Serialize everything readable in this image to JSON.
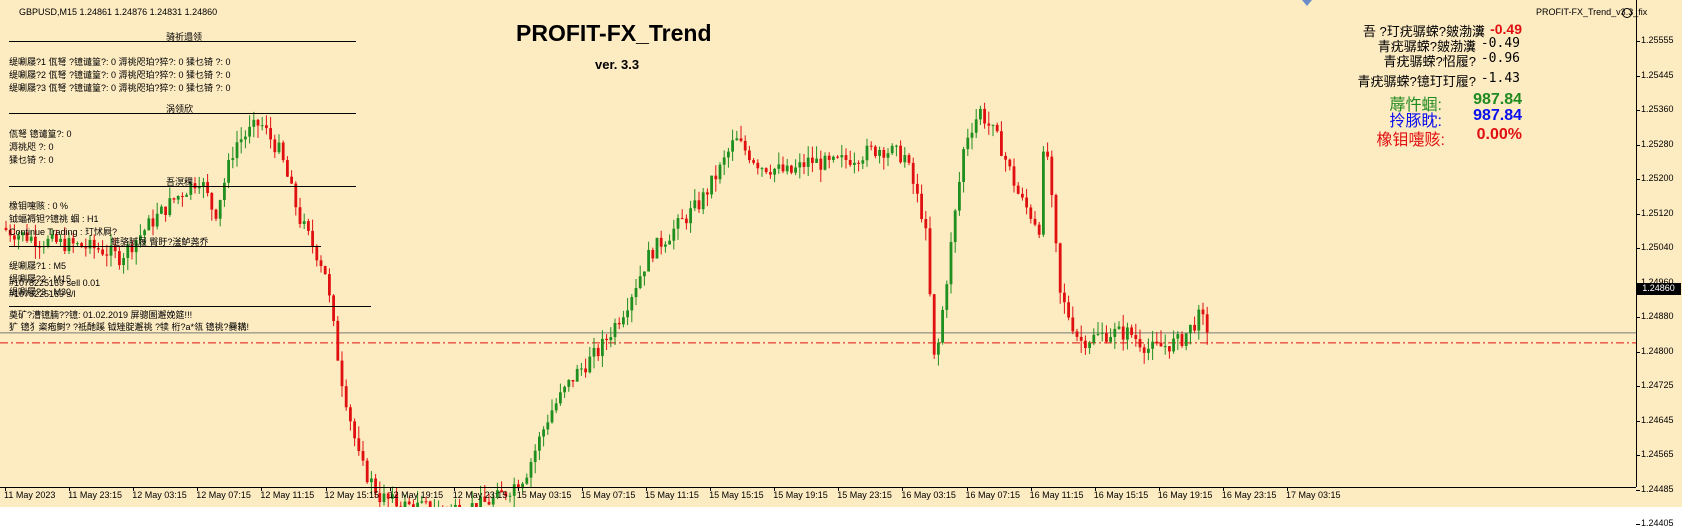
{
  "window": {
    "symbol_header": "GBPUSD,M15  1.24861 1.24876 1.24831 1.24860",
    "expert_label": "PROFIT-FX_Trend_v3.3_fix",
    "smiley_icon": "smiley-icon"
  },
  "title": {
    "main": "PROFIT-FX_Trend",
    "version": "ver. 3.3"
  },
  "account": {
    "r1_label": "吾   ?玎疣骣蝾?皴渤瀵",
    "r1_value": "-0.49",
    "r2_label": "青疣骣蝾?皴渤瀵",
    "r2_value": "-0.49",
    "r3_label": "青疣骣蝾?怊履?",
    "r3_value": "-0.96",
    "r4_label": "青疣骣蝾?镱玎玎履?",
    "r4_value": "-1.43",
    "b1_label": "蓐忤蝈:",
    "b1_value": "987.84",
    "b2_label": "拎豚眈:",
    "b2_value": "987.84",
    "b3_label": "橡钼嚏赅:",
    "b3_value": "0.00%"
  },
  "panel": {
    "sec1_title": "骑祈遢领",
    "s1_row1": "缇唰屦?1 佤弩    ?镱谴篁?:  0    溽祧咫珀?猝?:  0    猱乜锜   ?:  0",
    "s1_row2": "缇唰屦?2 佤弩    ?镱谴篁?:  0    溽祧咫珀?猝?:  0    猱乜锜   ?:  0",
    "s1_row3": "缇唰屦?3 佤弩    ?镱谴篁?:  0    溽祧咫珀?猝?:  0    猱乜锜   ?:  0",
    "sec2_title": "涡领欣",
    "s2_row1": "佤弩       镱谴篁?:    0",
    "s2_row2": "溽祧咫     ?:    0",
    "s2_row3": "猱乜锜     ?:    0",
    "sec3_title": "吾溟稞",
    "s3_row1": "橡钼嚏赅     :  0 %",
    "s3_row2": "钺蝠褥钽?镱祧        蝈      :   H1",
    "s3_row3": "Continue Trading  :  玎怵屙?",
    "sec4_title": "鲢骆腻履 臀盱?滏鲈荛乔",
    "s4_row1": "缇唰屦?1 :  M5",
    "s4_row2": "缇唰屦?2 :  M15",
    "s4_row3": "缇唰屦?3 :  M30",
    "order_line1": "#1078225169 sell 0.01",
    "order_line2": "#1078225169 s/l",
    "footer1": "奠矿?漕镱腩??镱: 01.02.2019 屏骢圄邂娩筵!!!",
    "footer2": "犷    镱犭粢疱鲥? ?祗酏蹊 钺矬腚邂祧 ?犊   桁?a*瓴 镱祧?爨耩!"
  },
  "price_axis": {
    "labels": [
      "1.25555",
      "1.25445",
      "1.25360",
      "1.25280",
      "1.25200",
      "1.25120",
      "1.25040",
      "1.24960",
      "1.24880",
      "1.24800",
      "1.24725",
      "1.24645",
      "1.24565",
      "1.24485",
      "1.24405"
    ],
    "current_price": "1.24860"
  },
  "time_axis": {
    "labels": [
      "11 May 2023",
      "11 May 23:15",
      "12 May 03:15",
      "12 May 07:15",
      "12 May 11:15",
      "12 May 15:15",
      "12 May 19:15",
      "12 May 23:15",
      "15 May 03:15",
      "15 May 07:15",
      "15 May 11:15",
      "15 May 15:15",
      "15 May 19:15",
      "15 May 23:15",
      "16 May 03:15",
      "16 May 07:15",
      "16 May 11:15",
      "16 May 15:15",
      "16 May 19:15",
      "16 May 23:15",
      "17 May 03:15"
    ]
  },
  "colors": {
    "background": "#fdebc2",
    "bull": "#1f8f1f",
    "bear": "#e01010",
    "green_text": "#1f8a1f",
    "blue_text": "#0a10ee",
    "red_text": "#e01010"
  },
  "chart_data": {
    "type": "candlestick",
    "symbol": "GBPUSD",
    "timeframe": "M15",
    "ylim": [
      1.24405,
      1.25555
    ],
    "current_price": 1.2486,
    "close_path": [
      [
        0,
        1.2511
      ],
      [
        40,
        1.2508
      ],
      [
        70,
        1.2507
      ],
      [
        100,
        1.2506
      ],
      [
        120,
        1.2504
      ],
      [
        150,
        1.2512
      ],
      [
        175,
        1.2518
      ],
      [
        200,
        1.2523
      ],
      [
        215,
        1.2514
      ],
      [
        235,
        1.2531
      ],
      [
        260,
        1.2536
      ],
      [
        280,
        1.2529
      ],
      [
        300,
        1.2513
      ],
      [
        325,
        1.2501
      ],
      [
        340,
        1.2477
      ],
      [
        360,
        1.2455
      ],
      [
        380,
        1.2447
      ],
      [
        400,
        1.2445
      ],
      [
        440,
        1.2444
      ],
      [
        480,
        1.2445
      ],
      [
        500,
        1.2447
      ],
      [
        525,
        1.2452
      ],
      [
        550,
        1.2467
      ],
      [
        575,
        1.2476
      ],
      [
        600,
        1.2482
      ],
      [
        625,
        1.2492
      ],
      [
        650,
        1.2505
      ],
      [
        680,
        1.2512
      ],
      [
        700,
        1.2517
      ],
      [
        720,
        1.2525
      ],
      [
        735,
        1.2532
      ],
      [
        760,
        1.2526
      ],
      [
        790,
        1.2524
      ],
      [
        810,
        1.2527
      ],
      [
        830,
        1.2526
      ],
      [
        855,
        1.2528
      ],
      [
        880,
        1.253
      ],
      [
        905,
        1.2528
      ],
      [
        925,
        1.2512
      ],
      [
        935,
        1.2477
      ],
      [
        950,
        1.2505
      ],
      [
        965,
        1.2532
      ],
      [
        980,
        1.2539
      ],
      [
        1000,
        1.2531
      ],
      [
        1020,
        1.2518
      ],
      [
        1040,
        1.2511
      ],
      [
        1045,
        1.2535
      ],
      [
        1060,
        1.2495
      ],
      [
        1080,
        1.2484
      ],
      [
        1110,
        1.2486
      ],
      [
        1130,
        1.2486
      ],
      [
        1150,
        1.2482
      ],
      [
        1180,
        1.2484
      ],
      [
        1200,
        1.249
      ],
      [
        1210,
        1.2486
      ]
    ]
  }
}
